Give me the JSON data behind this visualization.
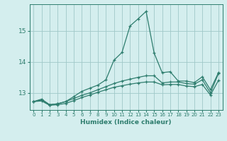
{
  "x": [
    0,
    1,
    2,
    3,
    4,
    5,
    6,
    7,
    8,
    9,
    10,
    11,
    12,
    13,
    14,
    15,
    16,
    17,
    18,
    19,
    20,
    21,
    22,
    23
  ],
  "line1": [
    12.72,
    12.8,
    12.62,
    12.65,
    12.72,
    12.88,
    13.05,
    13.15,
    13.25,
    13.42,
    14.05,
    14.3,
    15.15,
    15.38,
    15.62,
    14.28,
    13.65,
    13.68,
    13.38,
    13.38,
    13.33,
    13.52,
    13.1,
    13.65
  ],
  "line2": [
    12.72,
    12.77,
    12.62,
    12.65,
    12.72,
    12.82,
    12.92,
    13.0,
    13.1,
    13.2,
    13.3,
    13.38,
    13.44,
    13.5,
    13.55,
    13.55,
    13.32,
    13.35,
    13.35,
    13.3,
    13.28,
    13.42,
    13.0,
    13.62
  ],
  "line3": [
    12.72,
    12.74,
    12.6,
    12.62,
    12.66,
    12.75,
    12.85,
    12.93,
    13.02,
    13.1,
    13.18,
    13.23,
    13.28,
    13.32,
    13.35,
    13.35,
    13.26,
    13.27,
    13.27,
    13.22,
    13.2,
    13.27,
    12.93,
    13.4
  ],
  "line_color": "#2e7d6e",
  "bg_color": "#d4eeee",
  "grid_color": "#a0c8c8",
  "xlabel": "Humidex (Indice chaleur)",
  "ylim_min": 12.45,
  "ylim_max": 15.85,
  "yticks": [
    13,
    14,
    15
  ],
  "xticks": [
    0,
    1,
    2,
    3,
    4,
    5,
    6,
    7,
    8,
    9,
    10,
    11,
    12,
    13,
    14,
    15,
    16,
    17,
    18,
    19,
    20,
    21,
    22,
    23
  ]
}
